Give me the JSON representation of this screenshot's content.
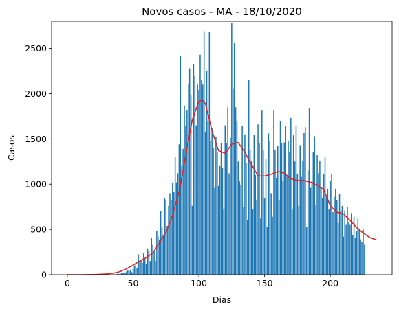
{
  "chart_data": {
    "type": "bar",
    "title": "Novos casos - MA - 18/10/2020",
    "xlabel": "Dias",
    "ylabel": "Casos",
    "xlim": [
      -12,
      247
    ],
    "ylim": [
      0,
      2800
    ],
    "xticks": [
      0,
      50,
      100,
      150,
      200
    ],
    "yticks": [
      0,
      500,
      1000,
      1500,
      2000,
      2500
    ],
    "grid": false,
    "legend": "none",
    "colors": {
      "bars": "#1f77b4",
      "trend": "#d62728"
    },
    "series": [
      {
        "type": "bar",
        "x_start": 0,
        "values": [
          0,
          0,
          0,
          0,
          0,
          0,
          0,
          0,
          0,
          0,
          0,
          0,
          0,
          0,
          0,
          0,
          0,
          0,
          0,
          0,
          0,
          0,
          0,
          0,
          0,
          0,
          0,
          0,
          0,
          0,
          0,
          0,
          0,
          0,
          1,
          3,
          2,
          6,
          8,
          10,
          4,
          14,
          19,
          25,
          21,
          35,
          49,
          38,
          55,
          27,
          62,
          98,
          110,
          72,
          224,
          140,
          165,
          130,
          238,
          182,
          120,
          290,
          265,
          150,
          410,
          330,
          260,
          150,
          485,
          420,
          380,
          700,
          520,
          440,
          848,
          828,
          540,
          760,
          900,
          820,
          1010,
          910,
          1300,
          1020,
          1120,
          1440,
          2420,
          1200,
          1390,
          1870,
          1640,
          1820,
          2100,
          2280,
          1980,
          760,
          2330,
          2200,
          1650,
          2100,
          2040,
          2430,
          2150,
          2100,
          2690,
          1580,
          2250,
          1700,
          2680,
          1480,
          1620,
          1400,
          960,
          1520,
          1350,
          980,
          1200,
          1450,
          1180,
          720,
          1650,
          1450,
          1850,
          1120,
          1510,
          2780,
          2060,
          2560,
          1850,
          1700,
          1250,
          1030,
          990,
          1640,
          750,
          1550,
          1230,
          600,
          2150,
          1380,
          1260,
          720,
          1540,
          1100,
          820,
          1660,
          1450,
          620,
          1820,
          1380,
          850,
          1280,
          530,
          1560,
          1480,
          900,
          640,
          1820,
          1380,
          1070,
          1420,
          820,
          1700,
          1450,
          1040,
          1460,
          1640,
          1090,
          1480,
          1360,
          1730,
          720,
          1540,
          1250,
          1640,
          1110,
          760,
          1430,
          1080,
          1260,
          1570,
          1630,
          530,
          1150,
          1840,
          960,
          1040,
          1350,
          1530,
          770,
          1320,
          1120,
          1260,
          960,
          850,
          1110,
          1300,
          860,
          950,
          720,
          1040,
          1110,
          690,
          860,
          950,
          820,
          570,
          890,
          700,
          760,
          420,
          710,
          550,
          750,
          580,
          550,
          680,
          440,
          640,
          410,
          480,
          620,
          510,
          390,
          360,
          500,
          330
        ]
      },
      {
        "type": "line",
        "x": [
          0,
          5,
          10,
          15,
          20,
          25,
          30,
          35,
          40,
          45,
          50,
          55,
          60,
          65,
          70,
          75,
          80,
          85,
          90,
          95,
          100,
          103,
          105,
          110,
          115,
          120,
          125,
          130,
          135,
          140,
          145,
          150,
          155,
          160,
          165,
          170,
          175,
          180,
          185,
          190,
          195,
          200,
          205,
          210,
          215,
          220,
          225,
          230,
          235
        ],
        "y": [
          0,
          0,
          0,
          1,
          2,
          4,
          8,
          16,
          33,
          65,
          105,
          150,
          188,
          240,
          350,
          470,
          650,
          920,
          1310,
          1710,
          1915,
          1930,
          1890,
          1590,
          1370,
          1340,
          1440,
          1460,
          1350,
          1220,
          1090,
          1090,
          1110,
          1140,
          1120,
          1060,
          1040,
          1040,
          1020,
          990,
          940,
          760,
          690,
          670,
          600,
          520,
          460,
          410,
          385
        ]
      }
    ]
  }
}
